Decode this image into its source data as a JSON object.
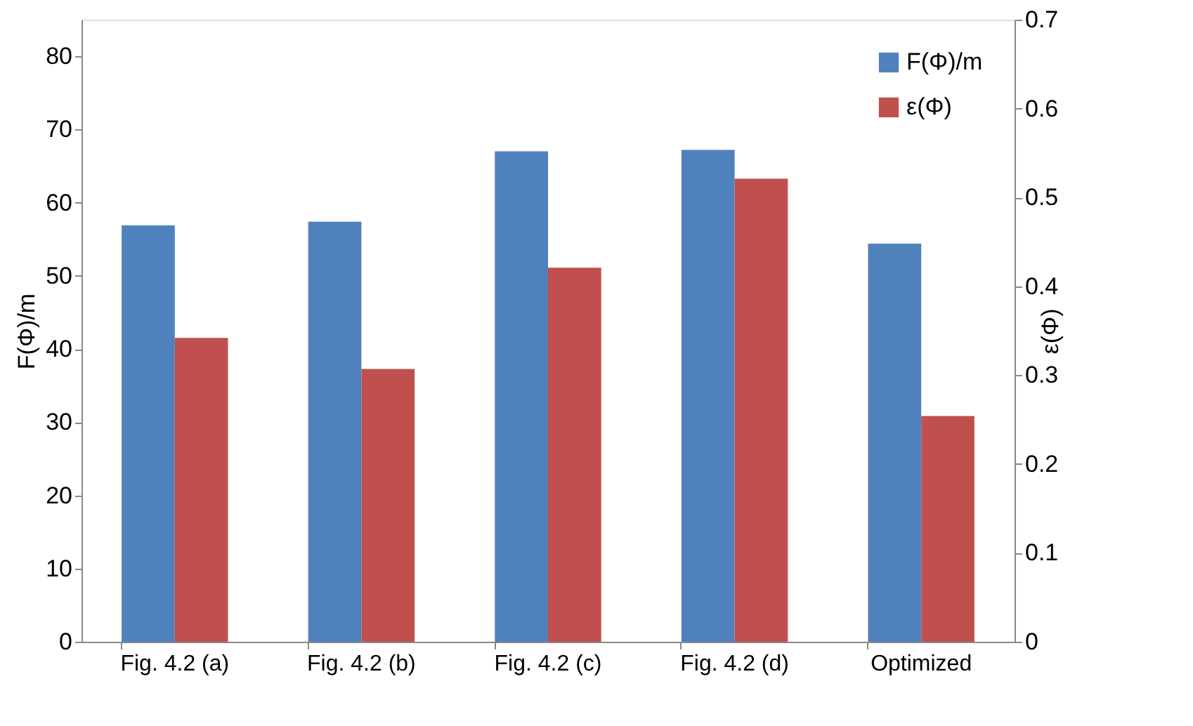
{
  "chart_data": {
    "type": "bar",
    "categories": [
      "Fig. 4.2 (a)",
      "Fig. 4.2 (b)",
      "Fig. 4.2 (c)",
      "Fig. 4.2 (d)",
      "Optimized"
    ],
    "ylabel": "F(Φ)/m",
    "y2label": "ε(Φ)",
    "ylim": [
      0,
      85
    ],
    "yticks": [
      0,
      10,
      20,
      30,
      40,
      50,
      60,
      70,
      80
    ],
    "y2lim": [
      0,
      0.7
    ],
    "y2ticks": [
      0,
      0.1,
      0.2,
      0.3,
      0.4,
      0.5,
      0.6,
      0.7
    ],
    "series": [
      {
        "name": "F(Φ)/m",
        "color": "#4f81bd",
        "values": [
          56.9,
          57.4,
          67.0,
          67.2,
          54.4
        ]
      },
      {
        "name": "ε(Φ)",
        "color": "#c0504d",
        "axis": "y2",
        "values": [
          0.342,
          0.307,
          0.421,
          0.521,
          0.254
        ]
      }
    ],
    "legend": "top right",
    "grid": false
  }
}
